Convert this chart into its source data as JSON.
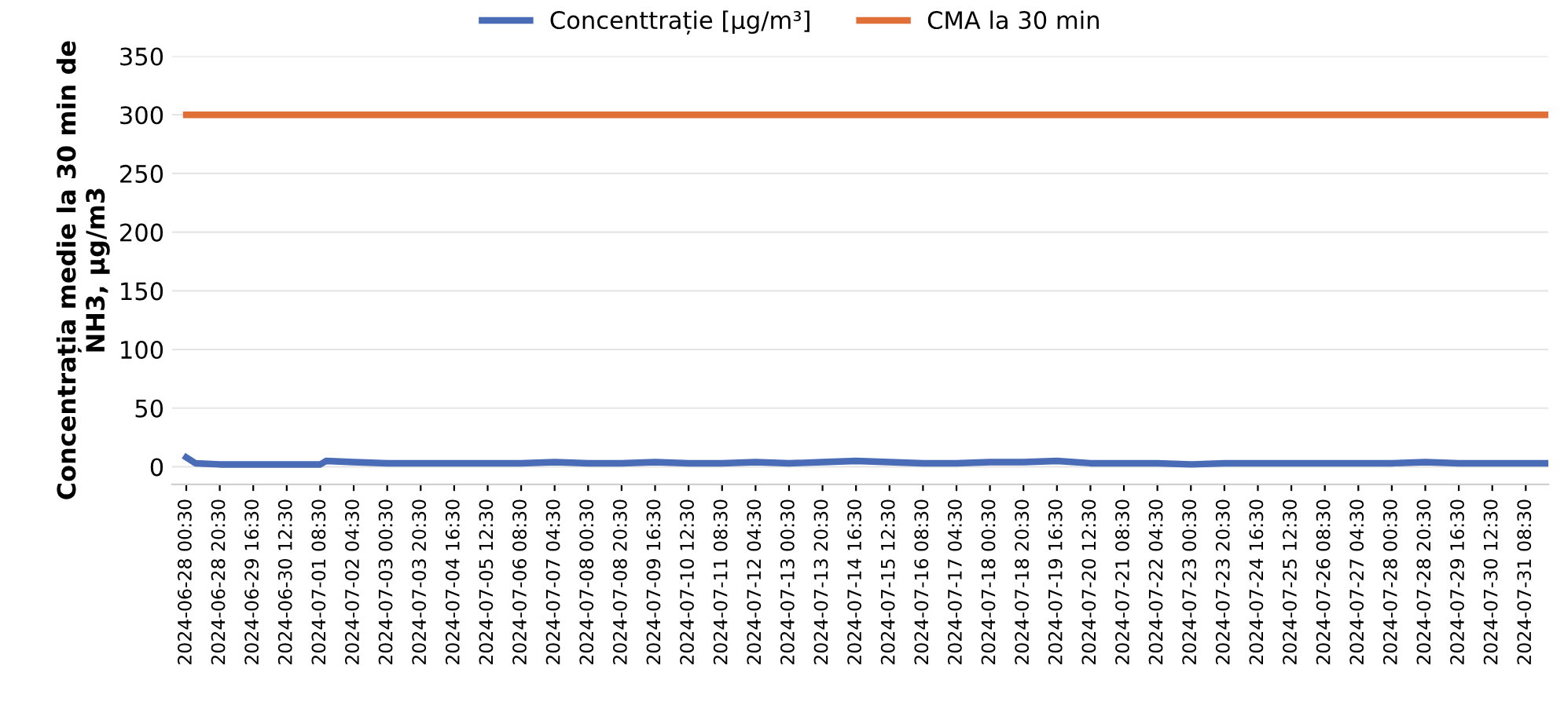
{
  "chart_data": {
    "type": "line",
    "ylabel": "Concentrația medie la 30 min de\nNH3, µg/m3",
    "x": [
      "2024-06-28T00:30",
      "2024-06-28T06:00",
      "2024-06-28T20:30",
      "2024-06-29T16:30",
      "2024-06-30T12:30",
      "2024-07-01T08:30",
      "2024-07-01T12:00",
      "2024-07-02T04:30",
      "2024-07-03T00:30",
      "2024-07-03T20:30",
      "2024-07-04T16:30",
      "2024-07-05T12:30",
      "2024-07-06T08:30",
      "2024-07-07T04:30",
      "2024-07-08T00:30",
      "2024-07-08T20:30",
      "2024-07-09T16:30",
      "2024-07-10T12:30",
      "2024-07-11T08:30",
      "2024-07-12T04:30",
      "2024-07-13T00:30",
      "2024-07-13T20:30",
      "2024-07-14T16:30",
      "2024-07-15T12:30",
      "2024-07-16T08:30",
      "2024-07-17T04:30",
      "2024-07-18T00:30",
      "2024-07-18T20:30",
      "2024-07-19T16:30",
      "2024-07-20T12:30",
      "2024-07-21T08:30",
      "2024-07-22T04:30",
      "2024-07-23T00:30",
      "2024-07-23T20:30",
      "2024-07-24T16:30",
      "2024-07-25T12:30",
      "2024-07-26T08:30",
      "2024-07-27T04:30",
      "2024-07-28T00:30",
      "2024-07-28T20:30",
      "2024-07-29T16:30",
      "2024-07-30T12:30",
      "2024-07-31T08:30",
      "2024-07-31T22:00"
    ],
    "series": [
      {
        "name": "Concenttrație [µg/m³]",
        "color": "#4a6bb5",
        "values": [
          8,
          3,
          2,
          2,
          2,
          2,
          5,
          4,
          3,
          3,
          3,
          3,
          3,
          4,
          3,
          3,
          4,
          3,
          3,
          4,
          3,
          4,
          5,
          4,
          3,
          3,
          4,
          4,
          5,
          3,
          3,
          3,
          2,
          3,
          3,
          3,
          3,
          3,
          3,
          4,
          3,
          3,
          3,
          3
        ]
      },
      {
        "name": "CMA la 30 min",
        "color": "#e07038",
        "x": [
          "2024-06-28T00:30",
          "2024-07-31T22:00"
        ],
        "values": [
          300,
          300
        ]
      }
    ],
    "ylim": [
      -15,
      350
    ],
    "yticks": [
      0,
      50,
      100,
      150,
      200,
      250,
      300,
      350
    ],
    "xlim": [
      "2024-06-27T16:00",
      "2024-07-31T22:00"
    ],
    "xticks": [
      {
        "value": "2024-06-28T00:30",
        "label": "2024-06-28 00:30"
      },
      {
        "value": "2024-06-28T20:30",
        "label": "2024-06-28 20:30"
      },
      {
        "value": "2024-06-29T16:30",
        "label": "2024-06-29 16:30"
      },
      {
        "value": "2024-06-30T12:30",
        "label": "2024-06-30 12:30"
      },
      {
        "value": "2024-07-01T08:30",
        "label": "2024-07-01 08:30"
      },
      {
        "value": "2024-07-02T04:30",
        "label": "2024-07-02 04:30"
      },
      {
        "value": "2024-07-03T00:30",
        "label": "2024-07-03 00:30"
      },
      {
        "value": "2024-07-03T20:30",
        "label": "2024-07-03 20:30"
      },
      {
        "value": "2024-07-04T16:30",
        "label": "2024-07-04 16:30"
      },
      {
        "value": "2024-07-05T12:30",
        "label": "2024-07-05 12:30"
      },
      {
        "value": "2024-07-06T08:30",
        "label": "2024-07-06 08:30"
      },
      {
        "value": "2024-07-07T04:30",
        "label": "2024-07-07 04:30"
      },
      {
        "value": "2024-07-08T00:30",
        "label": "2024-07-08 00:30"
      },
      {
        "value": "2024-07-08T20:30",
        "label": "2024-07-08 20:30"
      },
      {
        "value": "2024-07-09T16:30",
        "label": "2024-07-09 16:30"
      },
      {
        "value": "2024-07-10T12:30",
        "label": "2024-07-10 12:30"
      },
      {
        "value": "2024-07-11T08:30",
        "label": "2024-07-11 08:30"
      },
      {
        "value": "2024-07-12T04:30",
        "label": "2024-07-12 04:30"
      },
      {
        "value": "2024-07-13T00:30",
        "label": "2024-07-13 00:30"
      },
      {
        "value": "2024-07-13T20:30",
        "label": "2024-07-13 20:30"
      },
      {
        "value": "2024-07-14T16:30",
        "label": "2024-07-14 16:30"
      },
      {
        "value": "2024-07-15T12:30",
        "label": "2024-07-15 12:30"
      },
      {
        "value": "2024-07-16T08:30",
        "label": "2024-07-16 08:30"
      },
      {
        "value": "2024-07-17T04:30",
        "label": "2024-07-17 04:30"
      },
      {
        "value": "2024-07-18T00:30",
        "label": "2024-07-18 00:30"
      },
      {
        "value": "2024-07-18T20:30",
        "label": "2024-07-18 20:30"
      },
      {
        "value": "2024-07-19T16:30",
        "label": "2024-07-19 16:30"
      },
      {
        "value": "2024-07-20T12:30",
        "label": "2024-07-20 12:30"
      },
      {
        "value": "2024-07-21T08:30",
        "label": "2024-07-21 08:30"
      },
      {
        "value": "2024-07-22T04:30",
        "label": "2024-07-22 04:30"
      },
      {
        "value": "2024-07-23T00:30",
        "label": "2024-07-23 00:30"
      },
      {
        "value": "2024-07-23T20:30",
        "label": "2024-07-23 20:30"
      },
      {
        "value": "2024-07-24T16:30",
        "label": "2024-07-24 16:30"
      },
      {
        "value": "2024-07-25T12:30",
        "label": "2024-07-25 12:30"
      },
      {
        "value": "2024-07-26T08:30",
        "label": "2024-07-26 08:30"
      },
      {
        "value": "2024-07-27T04:30",
        "label": "2024-07-27 04:30"
      },
      {
        "value": "2024-07-28T00:30",
        "label": "2024-07-28 00:30"
      },
      {
        "value": "2024-07-28T20:30",
        "label": "2024-07-28 20:30"
      },
      {
        "value": "2024-07-29T16:30",
        "label": "2024-07-29 16:30"
      },
      {
        "value": "2024-07-30T12:30",
        "label": "2024-07-30 12:30"
      },
      {
        "value": "2024-07-31T08:30",
        "label": "2024-07-31 08:30"
      }
    ],
    "grid": "y",
    "legend": "top",
    "marker": "none",
    "line_style": "solid"
  }
}
